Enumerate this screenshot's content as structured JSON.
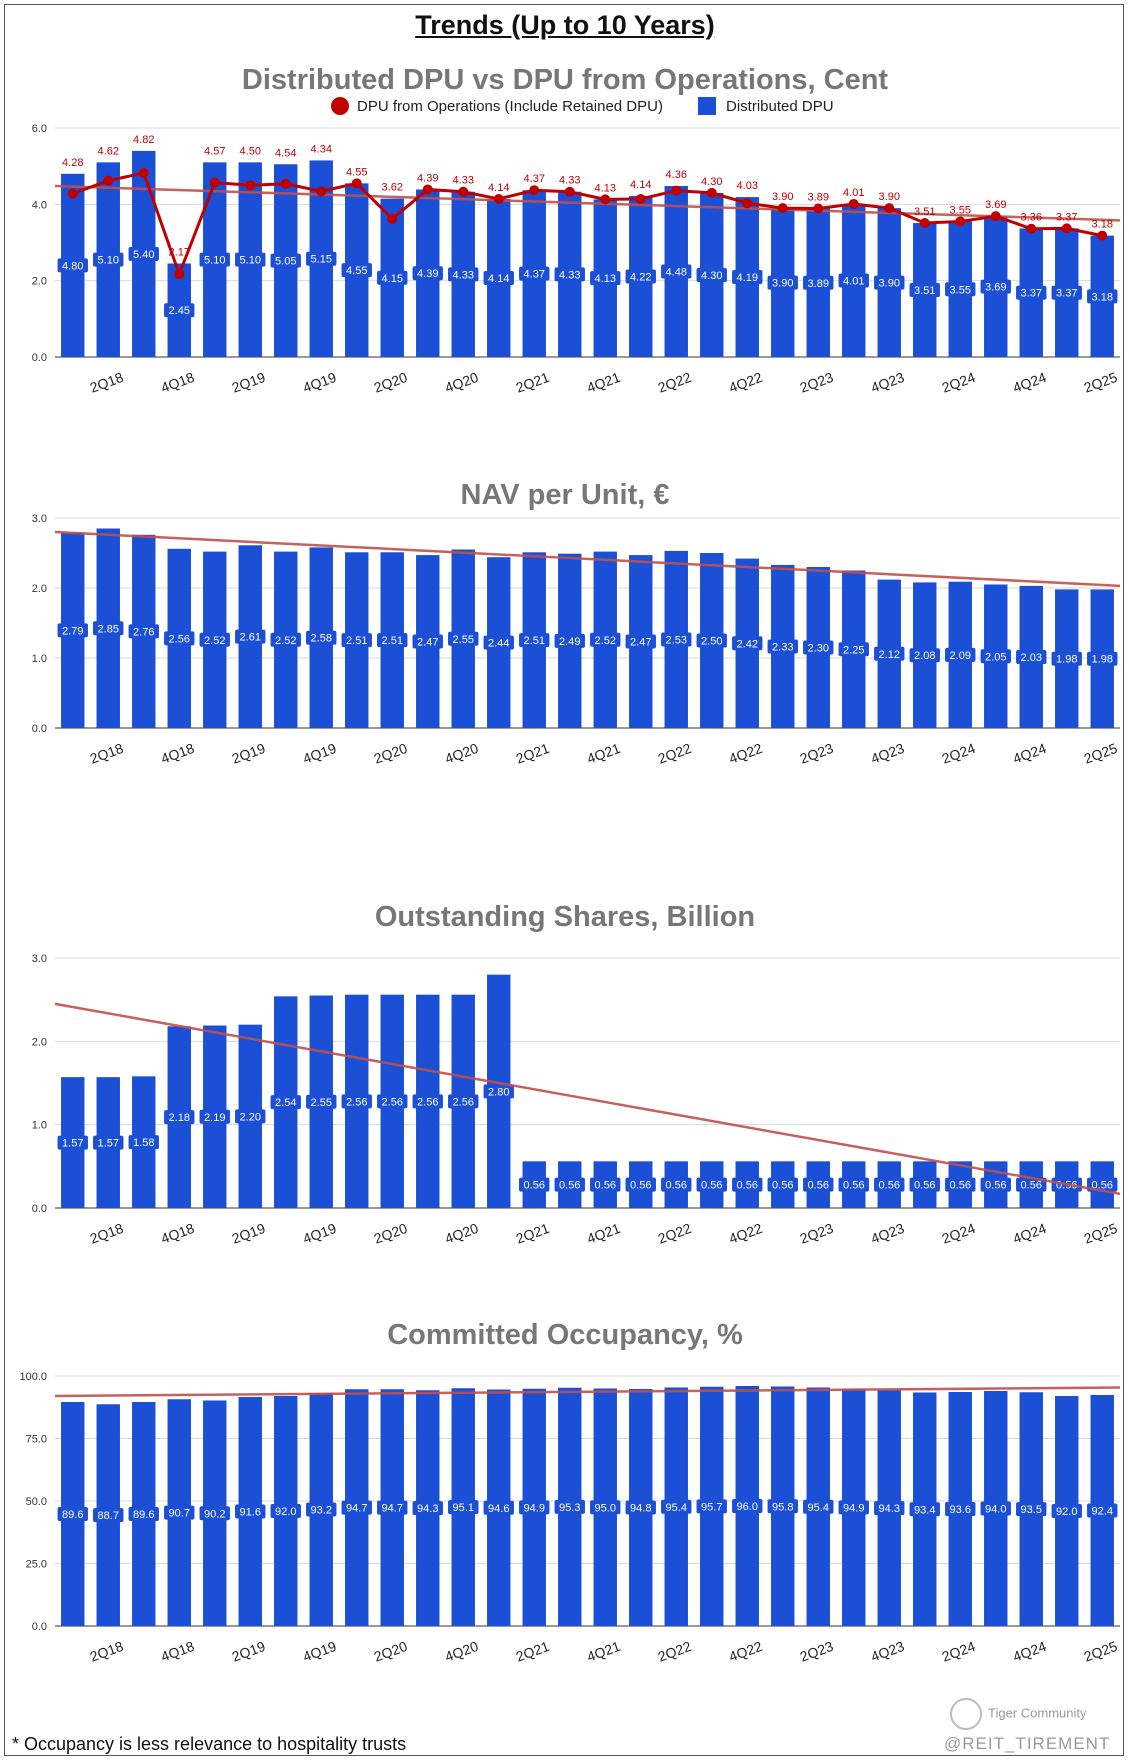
{
  "page": {
    "title": "Trends (Up to 10 Years)",
    "footnote": "* Occupancy is less relevance to hospitality trusts",
    "watermark": "Tiger Community",
    "handle": "@REIT_TIREMENT"
  },
  "colors": {
    "bar": "#1a4fd6",
    "line": "#c00000",
    "trend": "#c0504d",
    "grid": "#d9d9d9"
  },
  "chart_data": [
    {
      "type": "bar",
      "title": "Distributed DPU vs DPU from Operations, Cent",
      "categories": [
        "1Q18",
        "2Q18",
        "3Q18",
        "4Q18",
        "1Q19",
        "2Q19",
        "3Q19",
        "4Q19",
        "1Q20",
        "2Q20",
        "3Q20",
        "4Q20",
        "1Q21",
        "2Q21",
        "3Q21",
        "4Q21",
        "1Q22",
        "2Q22",
        "3Q22",
        "4Q22",
        "1Q23",
        "2Q23",
        "3Q23",
        "4Q23",
        "1Q24",
        "2Q24",
        "3Q24",
        "4Q24",
        "1Q25",
        "2Q25"
      ],
      "x_tick_labels": [
        "2Q18",
        "4Q18",
        "2Q19",
        "4Q19",
        "2Q20",
        "4Q20",
        "2Q21",
        "4Q21",
        "2Q22",
        "4Q22",
        "2Q23",
        "4Q23",
        "2Q24",
        "4Q24",
        "2Q25"
      ],
      "series": [
        {
          "name": "DPU from Operations (Include Retained DPU)",
          "kind": "line",
          "labels": [
            "4.28",
            "4.62",
            "4.82",
            "2.17",
            "4.57",
            "4.50",
            "4.54",
            "4.34",
            "4.55",
            "3.62",
            "4.39",
            "4.33",
            "4.14",
            "4.37",
            "4.33",
            "4.13",
            "4.14",
            "4.36",
            "4.30",
            "4.03",
            "3.90",
            "3.89",
            "4.01",
            "3.90",
            "3.51",
            "3.55",
            "3.69",
            "3.36",
            "3.37",
            "3.18"
          ],
          "values": [
            4.28,
            4.62,
            4.82,
            2.17,
            4.57,
            4.5,
            4.54,
            4.34,
            4.55,
            3.62,
            4.39,
            4.33,
            4.14,
            4.37,
            4.33,
            4.13,
            4.14,
            4.36,
            4.3,
            4.03,
            3.9,
            3.89,
            4.01,
            3.9,
            3.51,
            3.55,
            3.69,
            3.36,
            3.37,
            3.18
          ]
        },
        {
          "name": "Distributed DPU",
          "kind": "bar",
          "labels": [
            "4.80",
            "5.10",
            "5.40",
            "2.45",
            "5.10",
            "5.10",
            "5.05",
            "5.15",
            "4.55",
            "4.15",
            "4.39",
            "4.33",
            "4.14",
            "4.37",
            "4.33",
            "4.13",
            "4.22",
            "4.48",
            "4.30",
            "4.19",
            "3.90",
            "3.89",
            "4.01",
            "3.90",
            "3.51",
            "3.55",
            "3.69",
            "3.37",
            "3.37",
            "3.18"
          ],
          "values": [
            4.8,
            5.1,
            5.4,
            2.45,
            5.1,
            5.1,
            5.05,
            5.15,
            4.55,
            4.15,
            4.39,
            4.33,
            4.14,
            4.37,
            4.33,
            4.13,
            4.22,
            4.48,
            4.3,
            4.19,
            3.9,
            3.89,
            4.01,
            3.9,
            3.51,
            3.55,
            3.69,
            3.37,
            3.37,
            3.18
          ]
        }
      ],
      "trendline": [
        4.48,
        3.58
      ],
      "ylim": [
        0,
        6
      ],
      "y_ticks": [
        "0.0",
        "2.0",
        "4.0",
        "6.0"
      ],
      "legend": "top-center",
      "grid": true
    },
    {
      "type": "bar",
      "title": "NAV per Unit, €",
      "categories": [
        "1Q18",
        "2Q18",
        "3Q18",
        "4Q18",
        "1Q19",
        "2Q19",
        "3Q19",
        "4Q19",
        "1Q20",
        "2Q20",
        "3Q20",
        "4Q20",
        "1Q21",
        "2Q21",
        "3Q21",
        "4Q21",
        "1Q22",
        "2Q22",
        "3Q22",
        "4Q22",
        "1Q23",
        "2Q23",
        "3Q23",
        "4Q23",
        "1Q24",
        "2Q24",
        "3Q24",
        "4Q24",
        "1Q25",
        "2Q25"
      ],
      "x_tick_labels": [
        "2Q18",
        "4Q18",
        "2Q19",
        "4Q19",
        "2Q20",
        "4Q20",
        "2Q21",
        "4Q21",
        "2Q22",
        "4Q22",
        "2Q23",
        "4Q23",
        "2Q24",
        "4Q24",
        "2Q25"
      ],
      "series": [
        {
          "kind": "bar",
          "labels": [
            "2.79",
            "2.85",
            "2.76",
            "2.56",
            "2.52",
            "2.61",
            "2.52",
            "2.58",
            "2.51",
            "2.51",
            "2.47",
            "2.55",
            "2.44",
            "2.51",
            "2.49",
            "2.52",
            "2.47",
            "2.53",
            "2.50",
            "2.42",
            "2.33",
            "2.30",
            "2.25",
            "2.12",
            "2.08",
            "2.09",
            "2.05",
            "2.03",
            "1.98",
            "1.98"
          ],
          "values": [
            2.79,
            2.85,
            2.76,
            2.56,
            2.52,
            2.61,
            2.52,
            2.58,
            2.51,
            2.51,
            2.47,
            2.55,
            2.44,
            2.51,
            2.49,
            2.52,
            2.47,
            2.53,
            2.5,
            2.42,
            2.33,
            2.3,
            2.25,
            2.12,
            2.08,
            2.09,
            2.05,
            2.03,
            1.98,
            1.98
          ]
        }
      ],
      "trendline": [
        2.8,
        2.03
      ],
      "ylim": [
        0,
        3
      ],
      "y_ticks": [
        "0.0",
        "1.0",
        "2.0",
        "3.0"
      ],
      "grid": true
    },
    {
      "type": "bar",
      "title": "Outstanding Shares, Billion",
      "categories": [
        "1Q18",
        "2Q18",
        "3Q18",
        "4Q18",
        "1Q19",
        "2Q19",
        "3Q19",
        "4Q19",
        "1Q20",
        "2Q20",
        "3Q20",
        "4Q20",
        "1Q21",
        "2Q21",
        "3Q21",
        "4Q21",
        "1Q22",
        "2Q22",
        "3Q22",
        "4Q22",
        "1Q23",
        "2Q23",
        "3Q23",
        "4Q23",
        "1Q24",
        "2Q24",
        "3Q24",
        "4Q24",
        "1Q25",
        "2Q25"
      ],
      "x_tick_labels": [
        "2Q18",
        "4Q18",
        "2Q19",
        "4Q19",
        "2Q20",
        "4Q20",
        "2Q21",
        "4Q21",
        "2Q22",
        "4Q22",
        "2Q23",
        "4Q23",
        "2Q24",
        "4Q24",
        "2Q25"
      ],
      "series": [
        {
          "kind": "bar",
          "labels": [
            "1.57",
            "1.57",
            "1.58",
            "2.18",
            "2.19",
            "2.20",
            "2.54",
            "2.55",
            "2.56",
            "2.56",
            "2.56",
            "2.56",
            "2.80",
            "0.56",
            "0.56",
            "0.56",
            "0.56",
            "0.56",
            "0.56",
            "0.56",
            "0.56",
            "0.56",
            "0.56",
            "0.56",
            "0.56",
            "0.56",
            "0.56",
            "0.56",
            "0.56",
            "0.56"
          ],
          "values": [
            1.57,
            1.57,
            1.58,
            2.18,
            2.19,
            2.2,
            2.54,
            2.55,
            2.56,
            2.56,
            2.56,
            2.56,
            2.8,
            0.56,
            0.56,
            0.56,
            0.56,
            0.56,
            0.56,
            0.56,
            0.56,
            0.56,
            0.56,
            0.56,
            0.56,
            0.56,
            0.56,
            0.56,
            0.56,
            0.56
          ]
        }
      ],
      "trendline": [
        2.45,
        0.17
      ],
      "ylim": [
        0,
        3
      ],
      "y_ticks": [
        "0.0",
        "1.0",
        "2.0",
        "3.0"
      ],
      "grid": true
    },
    {
      "type": "bar",
      "title": "Committed Occupancy, %",
      "categories": [
        "1Q18",
        "2Q18",
        "3Q18",
        "4Q18",
        "1Q19",
        "2Q19",
        "3Q19",
        "4Q19",
        "1Q20",
        "2Q20",
        "3Q20",
        "4Q20",
        "1Q21",
        "2Q21",
        "3Q21",
        "4Q21",
        "1Q22",
        "2Q22",
        "3Q22",
        "4Q22",
        "1Q23",
        "2Q23",
        "3Q23",
        "4Q23",
        "1Q24",
        "2Q24",
        "3Q24",
        "4Q24",
        "1Q25",
        "2Q25"
      ],
      "x_tick_labels": [
        "2Q18",
        "4Q18",
        "2Q19",
        "4Q19",
        "2Q20",
        "4Q20",
        "2Q21",
        "4Q21",
        "2Q22",
        "4Q22",
        "2Q23",
        "4Q23",
        "2Q24",
        "4Q24",
        "2Q25"
      ],
      "series": [
        {
          "kind": "bar",
          "labels": [
            "89.6",
            "88.7",
            "89.6",
            "90.7",
            "90.2",
            "91.6",
            "92.0",
            "93.2",
            "94.7",
            "94.7",
            "94.3",
            "95.1",
            "94.6",
            "94.9",
            "95.3",
            "95.0",
            "94.8",
            "95.4",
            "95.7",
            "96.0",
            "95.8",
            "95.4",
            "94.9",
            "94.3",
            "93.4",
            "93.6",
            "94.0",
            "93.5",
            "92.0",
            "92.4"
          ],
          "values": [
            89.6,
            88.7,
            89.6,
            90.7,
            90.2,
            91.6,
            92.0,
            93.2,
            94.7,
            94.7,
            94.3,
            95.1,
            94.6,
            94.9,
            95.3,
            95.0,
            94.8,
            95.4,
            95.7,
            96.0,
            95.8,
            95.4,
            94.9,
            94.3,
            93.4,
            93.6,
            94.0,
            93.5,
            92.0,
            92.4
          ]
        }
      ],
      "trendline": [
        92.0,
        95.4
      ],
      "ylim": [
        0,
        100
      ],
      "y_ticks": [
        "0.0",
        "25.0",
        "50.0",
        "75.0",
        "100.0"
      ],
      "grid": true
    }
  ]
}
